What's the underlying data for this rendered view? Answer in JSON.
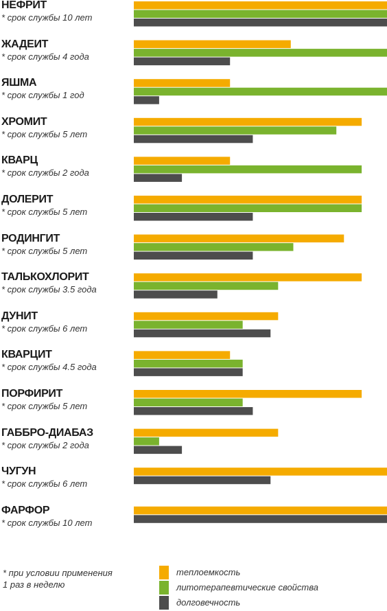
{
  "chart_data": {
    "type": "bar",
    "orientation": "horizontal",
    "categories": [
      "НЕФРИТ",
      "ЖАДЕИТ",
      "ЯШМА",
      "ХРОМИТ",
      "КВАРЦ",
      "ДОЛЕРИТ",
      "РОДИНГИТ",
      "ТАЛЬКОХЛОРИТ",
      "ДУНИТ",
      "КВАРЦИТ",
      "ПОРФИРИТ",
      "ГАББРО-ДИАБАЗ",
      "ЧУГУН",
      "ФАРФОР"
    ],
    "notes": [
      "* срок службы 10 лет",
      "* срок службы 4 года",
      "* срок службы 1 год",
      "* срок службы  5 лет",
      "* срок службы  2 года",
      "* срок службы 5 лет",
      "* срок службы 5 лет",
      "* срок службы  3.5 года",
      "* срок службы 6 лет",
      "* срок службы 4.5 года",
      "* срок службы 5 лет",
      "* срок службы  2 года",
      "* срок службы  6 лет",
      "* срок службы 10 лет"
    ],
    "series": [
      {
        "name": "теплоемкость",
        "color": "#f5ab00",
        "values": [
          100,
          62,
          38,
          90,
          38,
          90,
          83,
          90,
          57,
          38,
          90,
          57,
          100,
          100
        ]
      },
      {
        "name": "литотерапевтические свойства",
        "color": "#7ab32e",
        "values": [
          100,
          100,
          100,
          80,
          90,
          90,
          63,
          57,
          43,
          43,
          43,
          10,
          null,
          null
        ]
      },
      {
        "name": "долговечность",
        "color": "#4d4d4d",
        "values": [
          100,
          38,
          10,
          47,
          19,
          47,
          47,
          33,
          54,
          43,
          47,
          19,
          54,
          100
        ]
      }
    ],
    "xlim": [
      0,
      100
    ]
  },
  "legend": {
    "note_lines": [
      "*  при условии применения",
      "   1 раз в неделю"
    ]
  }
}
